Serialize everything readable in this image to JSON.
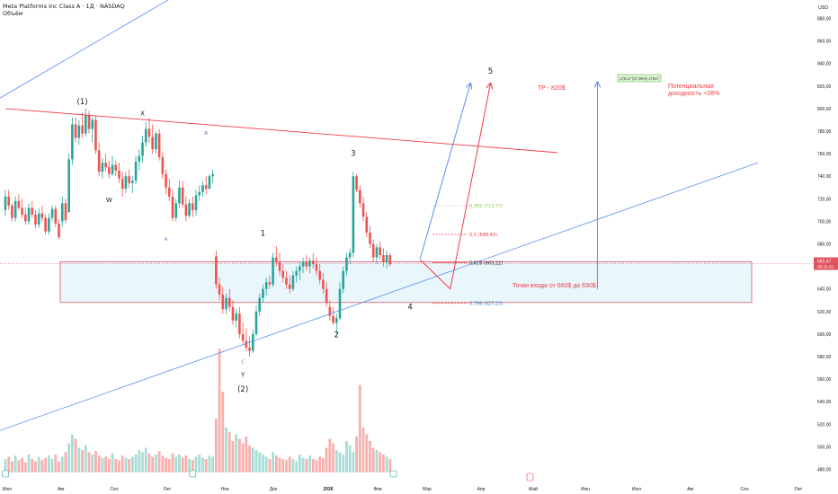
{
  "header": {
    "symbol_line": "Meta Platforms Inc Class A · 1Д · NASDAQ",
    "volume_label": "Объём"
  },
  "colors": {
    "bull": "#26a69a",
    "bear": "#ef5350",
    "vol_bull": "#a8ddd6",
    "vol_bear": "#f7b0ad",
    "trend_blue": "#5b8def",
    "trend_red": "#f03a45",
    "zone_fill": "#e9f7fc",
    "zone_border": "#e0525e",
    "fib_text": "#1e2c3c",
    "fib_green": "#8bc34a",
    "fib_blue": "#2d8ac9",
    "price_tag": "#e0525e",
    "axis_text": "#131722"
  },
  "chart_data": {
    "type": "candlestick",
    "title": "Meta Platforms Inc Class A · 1Д · NASDAQ",
    "currency": "USD",
    "interval": "1D",
    "y_axis": {
      "label": "USD",
      "min": 470,
      "max": 890,
      "ticks": [
        "880,00",
        "860,00",
        "840,00",
        "820,00",
        "800,00",
        "780,00",
        "760,00",
        "740,00",
        "720,00",
        "700,00",
        "680,00",
        "660,00",
        "640,00",
        "620,00",
        "600,00",
        "580,00",
        "560,00",
        "540,00",
        "520,00",
        "500,00",
        "480,00"
      ]
    },
    "x_axis": {
      "ticks": [
        "Июл",
        "Авг",
        "Сен",
        "Окт",
        "Ноя",
        "Дек",
        "2026",
        "Фев",
        "Мар",
        "Апр",
        "Май",
        "Июн",
        "Июл",
        "Авг",
        "Сен",
        "Окт"
      ]
    },
    "candles_ohlc": [
      [
        710,
        728,
        705,
        722
      ],
      [
        722,
        728,
        710,
        714
      ],
      [
        714,
        716,
        700,
        703
      ],
      [
        703,
        722,
        700,
        718
      ],
      [
        718,
        724,
        710,
        712
      ],
      [
        712,
        720,
        703,
        706
      ],
      [
        706,
        712,
        697,
        700
      ],
      [
        700,
        716,
        697,
        712
      ],
      [
        712,
        718,
        703,
        706
      ],
      [
        706,
        710,
        694,
        697
      ],
      [
        697,
        712,
        694,
        707
      ],
      [
        707,
        714,
        700,
        703
      ],
      [
        703,
        706,
        688,
        691
      ],
      [
        691,
        707,
        688,
        703
      ],
      [
        703,
        714,
        700,
        711
      ],
      [
        711,
        714,
        695,
        698
      ],
      [
        698,
        702,
        684,
        686
      ],
      [
        700,
        722,
        695,
        716
      ],
      [
        716,
        720,
        698,
        701
      ],
      [
        708,
        760,
        708,
        755
      ],
      [
        755,
        792,
        750,
        786
      ],
      [
        786,
        792,
        770,
        774
      ],
      [
        774,
        790,
        768,
        785
      ],
      [
        785,
        796,
        774,
        778
      ],
      [
        778,
        800,
        775,
        794
      ],
      [
        794,
        798,
        778,
        782
      ],
      [
        782,
        792,
        770,
        790
      ],
      [
        790,
        794,
        760,
        763
      ],
      [
        763,
        770,
        740,
        744
      ],
      [
        744,
        756,
        738,
        752
      ],
      [
        752,
        760,
        744,
        748
      ],
      [
        748,
        754,
        738,
        742
      ],
      [
        742,
        758,
        740,
        750
      ],
      [
        750,
        754,
        740,
        745
      ],
      [
        745,
        752,
        734,
        738
      ],
      [
        738,
        744,
        722,
        729
      ],
      [
        729,
        744,
        725,
        740
      ],
      [
        740,
        746,
        730,
        734
      ],
      [
        734,
        740,
        725,
        736
      ],
      [
        736,
        758,
        733,
        753
      ],
      [
        753,
        764,
        745,
        758
      ],
      [
        758,
        776,
        752,
        770
      ],
      [
        770,
        788,
        766,
        782
      ],
      [
        782,
        792,
        770,
        775
      ],
      [
        775,
        786,
        760,
        764
      ],
      [
        764,
        780,
        760,
        778
      ],
      [
        778,
        782,
        754,
        757
      ],
      [
        757,
        762,
        738,
        742
      ],
      [
        742,
        746,
        724,
        730
      ],
      [
        730,
        738,
        718,
        722
      ],
      [
        722,
        728,
        700,
        703
      ],
      [
        703,
        720,
        700,
        716
      ],
      [
        716,
        736,
        712,
        730
      ],
      [
        730,
        736,
        712,
        715
      ],
      [
        715,
        722,
        700,
        705
      ],
      [
        705,
        720,
        703,
        716
      ],
      [
        716,
        722,
        704,
        710
      ],
      [
        710,
        728,
        705,
        723
      ],
      [
        723,
        732,
        718,
        726
      ],
      [
        726,
        736,
        722,
        732
      ],
      [
        732,
        740,
        724,
        729
      ],
      [
        729,
        742,
        728,
        740
      ],
      [
        740,
        746,
        734,
        742
      ],
      [
        669,
        674,
        640,
        644
      ],
      [
        644,
        650,
        630,
        635
      ],
      [
        635,
        642,
        618,
        622
      ],
      [
        622,
        636,
        618,
        632
      ],
      [
        632,
        640,
        620,
        624
      ],
      [
        624,
        630,
        608,
        612
      ],
      [
        612,
        622,
        606,
        618
      ],
      [
        618,
        624,
        596,
        600
      ],
      [
        600,
        610,
        590,
        594
      ],
      [
        594,
        605,
        585,
        588
      ],
      [
        588,
        598,
        580,
        585
      ],
      [
        585,
        604,
        583,
        600
      ],
      [
        600,
        625,
        598,
        620
      ],
      [
        620,
        636,
        616,
        632
      ],
      [
        632,
        644,
        628,
        640
      ],
      [
        640,
        650,
        634,
        646
      ],
      [
        646,
        652,
        640,
        644
      ],
      [
        644,
        672,
        642,
        668
      ],
      [
        668,
        678,
        660,
        664
      ],
      [
        664,
        672,
        652,
        656
      ],
      [
        656,
        662,
        646,
        650
      ],
      [
        650,
        656,
        640,
        644
      ],
      [
        644,
        652,
        636,
        640
      ],
      [
        640,
        656,
        638,
        652
      ],
      [
        652,
        660,
        646,
        656
      ],
      [
        656,
        664,
        648,
        660
      ],
      [
        660,
        668,
        654,
        664
      ],
      [
        664,
        670,
        656,
        660
      ],
      [
        660,
        668,
        654,
        665
      ],
      [
        665,
        672,
        658,
        662
      ],
      [
        662,
        668,
        652,
        656
      ],
      [
        656,
        662,
        644,
        648
      ],
      [
        648,
        654,
        636,
        640
      ],
      [
        640,
        646,
        624,
        628
      ],
      [
        624,
        630,
        612,
        616
      ],
      [
        616,
        624,
        608,
        610
      ],
      [
        610,
        618,
        600,
        614
      ],
      [
        614,
        646,
        612,
        640
      ],
      [
        640,
        660,
        636,
        656
      ],
      [
        656,
        672,
        652,
        668
      ],
      [
        668,
        676,
        662,
        672
      ],
      [
        672,
        744,
        668,
        740
      ],
      [
        740,
        742,
        726,
        728
      ],
      [
        728,
        732,
        712,
        716
      ],
      [
        716,
        722,
        700,
        704
      ],
      [
        704,
        708,
        686,
        690
      ],
      [
        690,
        696,
        676,
        680
      ],
      [
        680,
        684,
        664,
        668
      ],
      [
        668,
        680,
        662,
        677
      ],
      [
        677,
        682,
        666,
        670
      ],
      [
        670,
        676,
        660,
        664
      ],
      [
        664,
        674,
        658,
        670
      ],
      [
        670,
        672,
        660,
        662
      ]
    ],
    "volume": [
      12,
      14,
      10,
      15,
      11,
      13,
      9,
      16,
      12,
      10,
      14,
      11,
      13,
      15,
      12,
      16,
      10,
      14,
      18,
      26,
      34,
      30,
      22,
      20,
      24,
      18,
      16,
      19,
      15,
      13,
      14,
      12,
      17,
      12,
      11,
      15,
      13,
      12,
      14,
      16,
      20,
      18,
      22,
      17,
      14,
      16,
      19,
      15,
      13,
      12,
      17,
      14,
      16,
      13,
      15,
      12,
      11,
      14,
      16,
      13,
      12,
      15,
      14,
      48,
      110,
      72,
      40,
      36,
      28,
      34,
      30,
      26,
      32,
      24,
      22,
      20,
      18,
      16,
      14,
      12,
      18,
      15,
      13,
      12,
      11,
      14,
      12,
      10,
      16,
      13,
      12,
      15,
      12,
      11,
      14,
      13,
      22,
      30,
      26,
      20,
      18,
      16,
      28,
      24,
      18,
      32,
      78,
      40,
      34,
      28,
      22,
      20,
      18,
      16,
      14,
      12
    ],
    "trend_lines": [
      {
        "id": "upper-channel-blue",
        "from": [
          -3,
          807
        ],
        "to": [
          112,
          1006
        ]
      },
      {
        "id": "red-resistance",
        "from": [
          0,
          800
        ],
        "to": [
          165,
          761
        ]
      },
      {
        "id": "lower-channel-blue",
        "from": [
          -3,
          513
        ],
        "to": [
          225,
          752
        ]
      },
      {
        "id": "projection-blue",
        "from": [
          124,
          667
        ],
        "to": [
          139,
          822
        ]
      },
      {
        "id": "projection-red-1",
        "from": [
          124,
          666
        ],
        "to": [
          133,
          640
        ]
      },
      {
        "id": "projection-red-2",
        "from": [
          133,
          640
        ],
        "to": [
          145,
          822
        ]
      },
      {
        "id": "target-arrow",
        "from": [
          177,
          640
        ],
        "to": [
          177,
          823
        ]
      }
    ],
    "entry_zone": {
      "top": 664,
      "bottom": 628
    },
    "fib_levels": [
      {
        "ratio": "0.382",
        "price": 713.77,
        "label": "0,382 (713,77)"
      },
      {
        "ratio": "0.5",
        "price": 688.49,
        "label": "0,5 (688,49)"
      },
      {
        "ratio": "0.618",
        "price": 663.22,
        "label": "0,618 (663,22)"
      },
      {
        "ratio": "0.786",
        "price": 627.23,
        "label": "0,786 (627,23)"
      }
    ],
    "wave_labels": [
      {
        "text": "(1)",
        "at": [
          23,
          804
        ]
      },
      {
        "text": "X",
        "at": [
          41,
          794
        ]
      },
      {
        "text": "W",
        "at": [
          31,
          717
        ]
      },
      {
        "text": "B",
        "at": [
          60,
          777
        ]
      },
      {
        "text": "A",
        "at": [
          48,
          683
        ]
      },
      {
        "text": "1",
        "at": [
          77,
          687
        ]
      },
      {
        "text": "C",
        "at": [
          71,
          574
        ]
      },
      {
        "text": "Y",
        "at": [
          71,
          562
        ]
      },
      {
        "text": "(2)",
        "at": [
          71,
          549
        ]
      },
      {
        "text": "3",
        "at": [
          104,
          758
        ]
      },
      {
        "text": "2",
        "at": [
          99,
          597
        ]
      },
      {
        "text": "4",
        "at": [
          121,
          622
        ]
      },
      {
        "text": "5",
        "at": [
          145,
          831
        ]
      }
    ],
    "annotations": {
      "tp": "TP - 820$",
      "potential_line1": "Потенциальная",
      "potential_line2": "доходность +28%",
      "entry": "Точки входа от 660$ до 630$",
      "measure": "179,17 (27,90%) 17917"
    },
    "current_price": {
      "value": "662,47",
      "sub": "05:32:42",
      "price": 662.47
    },
    "event_markers": [
      {
        "type": "earnings",
        "index": 0
      },
      {
        "type": "earnings",
        "index": 56
      },
      {
        "type": "earnings",
        "index": 116
      }
    ]
  }
}
